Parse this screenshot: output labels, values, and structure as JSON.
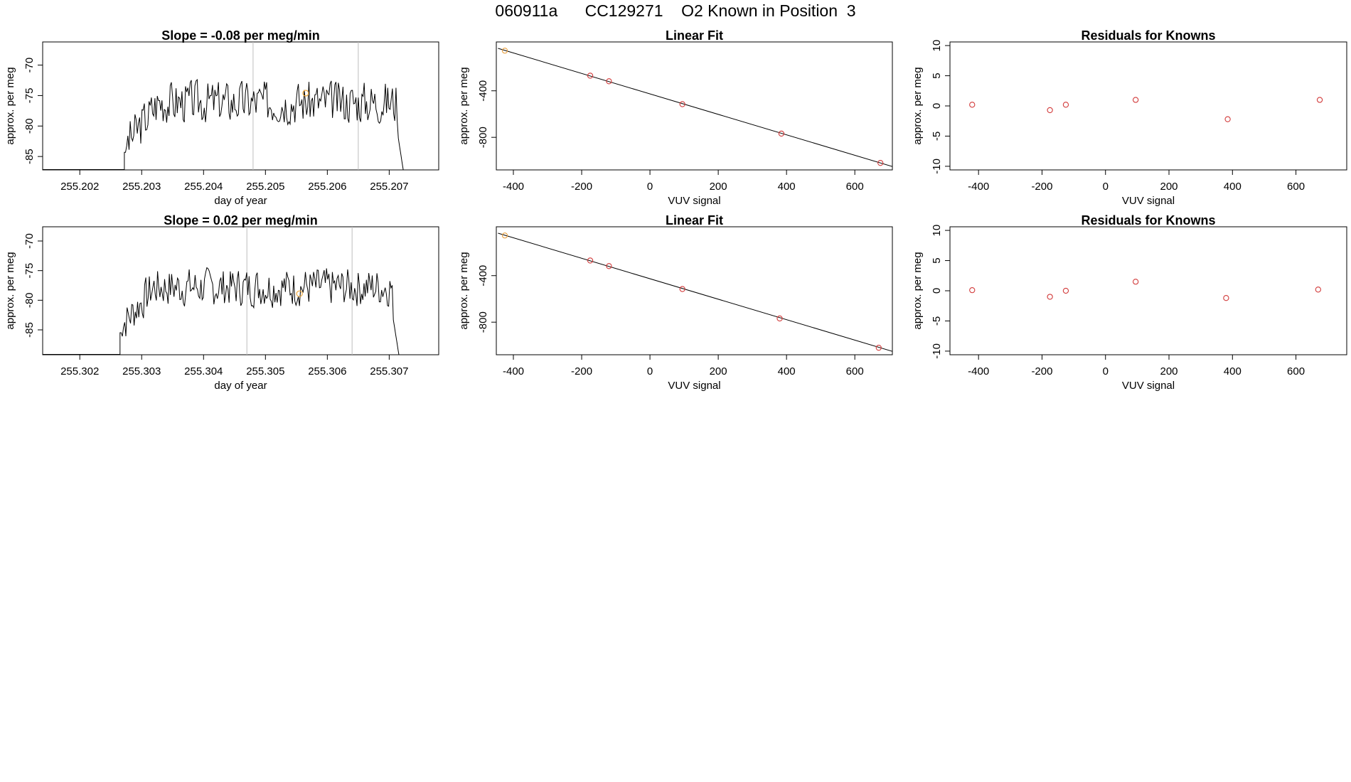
{
  "page": {
    "title": "060911a      CC129271    O2 Known in Position  3"
  },
  "chart_data": [
    {
      "id": "ts1",
      "type": "line",
      "title": "Slope =  -0.08  per meg/min",
      "xlabel": "day of year",
      "ylabel": "approx. per meg",
      "xlim": [
        255.2014,
        255.2078
      ],
      "ylim": [
        -87.2,
        -66.2
      ],
      "xticks": [
        255.202,
        255.203,
        255.204,
        255.205,
        255.206,
        255.207
      ],
      "xtick_labels": [
        "255.202",
        "255.203",
        "255.204",
        "255.205",
        "255.206",
        "255.207"
      ],
      "yticks": [
        -85,
        -80,
        -75,
        -70
      ],
      "ytick_labels": [
        "-85",
        "-80",
        "-75",
        "-70"
      ],
      "vlines": [
        255.2048,
        255.2065
      ],
      "series": [
        {
          "color": "#000000",
          "x_start": 255.20272,
          "x_end": 255.20728,
          "baseline": -90,
          "mean": -76.0,
          "amp": 2.6,
          "seed": 3
        }
      ],
      "highlight": {
        "x": 255.20565,
        "y": -74.6,
        "color": "#f2a93b"
      },
      "grid": false
    },
    {
      "id": "fit1",
      "type": "scatter",
      "title": "Linear Fit",
      "xlabel": "VUV signal",
      "ylabel": "approx. per meg",
      "xlim": [
        -450,
        710
      ],
      "ylim": [
        -1080,
        20
      ],
      "xticks": [
        -400,
        -200,
        0,
        200,
        400,
        600
      ],
      "xtick_labels": [
        "-400",
        "-200",
        "0",
        "200",
        "400",
        "600"
      ],
      "yticks": [
        -800,
        -400
      ],
      "ytick_labels": [
        "-800",
        "-400"
      ],
      "points": [
        {
          "x": -425,
          "y": -55,
          "color": "#e8a040"
        },
        {
          "x": -175,
          "y": -270,
          "color": "#d23a3a"
        },
        {
          "x": -120,
          "y": -318,
          "color": "#d23a3a"
        },
        {
          "x": 95,
          "y": -515,
          "color": "#d23a3a"
        },
        {
          "x": 385,
          "y": -768,
          "color": "#d23a3a"
        },
        {
          "x": 675,
          "y": -1020,
          "color": "#d23a3a"
        }
      ],
      "fit_line": {
        "x": [
          -445,
          720
        ],
        "y": [
          -35,
          -1060
        ],
        "color": "#000000"
      },
      "grid": false
    },
    {
      "id": "res1",
      "type": "scatter",
      "title": "Residuals for Knowns",
      "xlabel": "VUV signal",
      "ylabel": "approx. per meg",
      "xlim": [
        -490,
        760
      ],
      "ylim": [
        -10.6,
        10.6
      ],
      "xticks": [
        -400,
        -200,
        0,
        200,
        400,
        600
      ],
      "xtick_labels": [
        "-400",
        "-200",
        "0",
        "200",
        "400",
        "600"
      ],
      "yticks": [
        -10,
        -5,
        0,
        5,
        10
      ],
      "ytick_labels": [
        "-10",
        "-5",
        "0",
        "5",
        "10"
      ],
      "points": [
        {
          "x": -420,
          "y": 0.2,
          "color": "#d23a3a"
        },
        {
          "x": -175,
          "y": -0.7,
          "color": "#d23a3a"
        },
        {
          "x": -125,
          "y": 0.2,
          "color": "#d23a3a"
        },
        {
          "x": 95,
          "y": 1.0,
          "color": "#d23a3a"
        },
        {
          "x": 385,
          "y": -2.2,
          "color": "#d23a3a"
        },
        {
          "x": 675,
          "y": 1.0,
          "color": "#d23a3a"
        }
      ],
      "grid": false
    },
    {
      "id": "ts2",
      "type": "line",
      "title": "Slope =  0.02  per meg/min",
      "xlabel": "day of year",
      "ylabel": "approx. per meg",
      "xlim": [
        255.3014,
        255.3078
      ],
      "ylim": [
        -89.2,
        -67.6
      ],
      "xticks": [
        255.302,
        255.303,
        255.304,
        255.305,
        255.306,
        255.307
      ],
      "xtick_labels": [
        "255.302",
        "255.303",
        "255.304",
        "255.305",
        "255.306",
        "255.307"
      ],
      "yticks": [
        -85,
        -80,
        -75,
        -70
      ],
      "ytick_labels": [
        "-85",
        "-80",
        "-75",
        "-70"
      ],
      "vlines": [
        255.3047,
        255.3064
      ],
      "series": [
        {
          "color": "#000000",
          "x_start": 255.30265,
          "x_end": 255.3072,
          "baseline": -92,
          "mean": -77.8,
          "amp": 2.4,
          "seed": 7
        }
      ],
      "highlight": {
        "x": 255.30555,
        "y": -78.9,
        "color": "#f2a93b"
      },
      "grid": false
    },
    {
      "id": "fit2",
      "type": "scatter",
      "title": "Linear Fit",
      "xlabel": "VUV signal",
      "ylabel": "approx. per meg",
      "xlim": [
        -450,
        710
      ],
      "ylim": [
        -1080,
        20
      ],
      "xticks": [
        -400,
        -200,
        0,
        200,
        400,
        600
      ],
      "xtick_labels": [
        "-400",
        "-200",
        "0",
        "200",
        "400",
        "600"
      ],
      "yticks": [
        -800,
        -400
      ],
      "ytick_labels": [
        "-800",
        "-400"
      ],
      "points": [
        {
          "x": -425,
          "y": -55,
          "color": "#e8a040"
        },
        {
          "x": -175,
          "y": -270,
          "color": "#d23a3a"
        },
        {
          "x": -120,
          "y": -318,
          "color": "#d23a3a"
        },
        {
          "x": 95,
          "y": -515,
          "color": "#d23a3a"
        },
        {
          "x": 380,
          "y": -768,
          "color": "#d23a3a"
        },
        {
          "x": 670,
          "y": -1020,
          "color": "#d23a3a"
        }
      ],
      "fit_line": {
        "x": [
          -445,
          720
        ],
        "y": [
          -35,
          -1060
        ],
        "color": "#000000"
      },
      "grid": false
    },
    {
      "id": "res2",
      "type": "scatter",
      "title": "Residuals for Knowns",
      "xlabel": "VUV signal",
      "ylabel": "approx. per meg",
      "xlim": [
        -490,
        760
      ],
      "ylim": [
        -10.6,
        10.6
      ],
      "xticks": [
        -400,
        -200,
        0,
        200,
        400,
        600
      ],
      "xtick_labels": [
        "-400",
        "-200",
        "0",
        "200",
        "400",
        "600"
      ],
      "yticks": [
        -10,
        -5,
        0,
        5,
        10
      ],
      "ytick_labels": [
        "-10",
        "-5",
        "0",
        "5",
        "10"
      ],
      "points": [
        {
          "x": -420,
          "y": 0.1,
          "color": "#d23a3a"
        },
        {
          "x": -175,
          "y": -1.0,
          "color": "#d23a3a"
        },
        {
          "x": -125,
          "y": 0.0,
          "color": "#d23a3a"
        },
        {
          "x": 95,
          "y": 1.5,
          "color": "#d23a3a"
        },
        {
          "x": 380,
          "y": -1.2,
          "color": "#d23a3a"
        },
        {
          "x": 670,
          "y": 0.2,
          "color": "#d23a3a"
        }
      ],
      "grid": false
    }
  ]
}
